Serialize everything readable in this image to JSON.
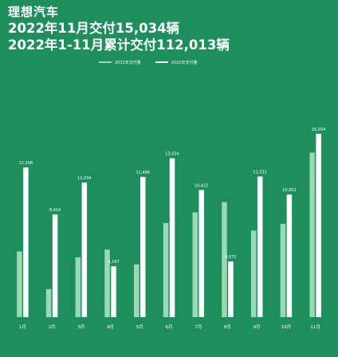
{
  "header": {
    "brand": "理想汽车",
    "line1": "2022年11月交付15,034辆",
    "line2": "2022年1-11月累计交付112,013辆"
  },
  "colors": {
    "background": "#1e8f5c",
    "series_2021": "#9ad9b5",
    "series_2022": "#ffffff"
  },
  "chart_data": {
    "type": "bar",
    "categories": [
      "1月",
      "2月",
      "3月",
      "4月",
      "5月",
      "6月",
      "7月",
      "8月",
      "9月",
      "10月",
      "11月"
    ],
    "series": [
      {
        "name": "2021年交付量",
        "values": [
          5379,
          2300,
          4900,
          5539,
          4323,
          7713,
          8589,
          9433,
          7094,
          7649,
          13485
        ],
        "labels": [
          "",
          "",
          "",
          "",
          "",
          "",
          "",
          "",
          "",
          "",
          ""
        ]
      },
      {
        "name": "2022年交付量",
        "values": [
          12268,
          8414,
          11034,
          4167,
          11496,
          13024,
          10422,
          4571,
          11531,
          10052,
          15034
        ],
        "labels": [
          "12,268",
          "8,414",
          "11,034",
          "4,167",
          "11,496",
          "13,024",
          "10,422",
          "4,571",
          "11,531",
          "10,052",
          "15,034"
        ]
      }
    ],
    "ylim": [
      0,
      16000
    ],
    "grid": false,
    "legend": "top-center"
  }
}
